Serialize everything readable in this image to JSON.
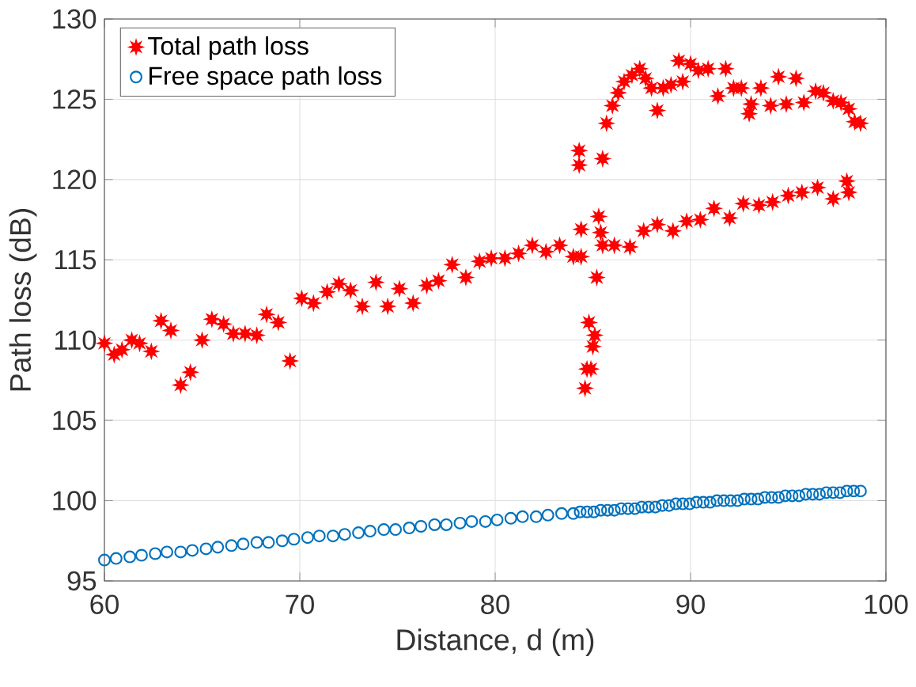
{
  "chart_data": {
    "type": "scatter",
    "xlabel": "Distance, d (m)",
    "ylabel": "Path loss (dB)",
    "xlim": [
      60,
      100
    ],
    "ylim": [
      95,
      130
    ],
    "xticks": [
      60,
      70,
      80,
      90,
      100
    ],
    "yticks": [
      95,
      100,
      105,
      110,
      115,
      120,
      125,
      130
    ],
    "grid": true,
    "legend": "top left",
    "series": [
      {
        "name": "Total path loss",
        "color": "#ff0000",
        "marker": "star",
        "x": [
          60.0,
          60.5,
          60.9,
          61.4,
          61.8,
          62.4,
          62.9,
          63.4,
          63.9,
          64.4,
          65.0,
          65.5,
          66.1,
          66.6,
          67.2,
          67.8,
          68.3,
          68.9,
          69.5,
          70.1,
          70.7,
          71.4,
          72.0,
          72.6,
          73.2,
          73.9,
          74.5,
          75.1,
          75.8,
          76.5,
          77.1,
          77.8,
          78.5,
          79.2,
          79.8,
          80.5,
          81.2,
          81.9,
          82.6,
          83.3,
          84.0,
          84.4,
          84.4,
          84.3,
          84.3,
          84.6,
          84.7,
          84.9,
          84.8,
          85.1,
          85.0,
          85.2,
          85.3,
          85.4,
          85.5,
          85.5,
          86.1,
          86.9,
          85.7,
          86.0,
          86.3,
          86.6,
          87.0,
          87.4,
          87.7,
          88.0,
          88.3,
          88.6,
          89.0,
          89.4,
          89.6,
          90.0,
          90.4,
          90.9,
          91.4,
          91.8,
          92.2,
          92.6,
          93.0,
          93.1,
          93.6,
          94.1,
          94.5,
          94.9,
          95.4,
          95.8,
          96.4,
          96.8,
          97.3,
          97.7,
          98.1,
          98.4,
          98.7,
          87.6,
          88.3,
          89.1,
          89.8,
          90.5,
          91.2,
          92.0,
          92.7,
          93.5,
          94.2,
          95.0,
          95.7,
          96.5,
          97.3,
          98.0,
          98.1
        ],
        "values": [
          109.8,
          109.1,
          109.4,
          110.0,
          109.8,
          109.3,
          111.2,
          110.6,
          107.2,
          108.0,
          110.0,
          111.3,
          111.0,
          110.4,
          110.4,
          110.3,
          111.6,
          111.1,
          108.7,
          112.6,
          112.3,
          113.0,
          113.5,
          113.1,
          112.1,
          113.6,
          112.1,
          113.2,
          112.3,
          113.4,
          113.7,
          114.7,
          113.9,
          114.9,
          115.1,
          115.1,
          115.4,
          115.9,
          115.5,
          115.9,
          115.2,
          115.2,
          116.9,
          121.8,
          120.9,
          107.0,
          108.2,
          108.2,
          111.1,
          110.3,
          109.6,
          113.9,
          117.7,
          116.7,
          115.9,
          121.3,
          115.9,
          115.8,
          123.5,
          124.6,
          125.4,
          126.1,
          126.5,
          126.9,
          126.3,
          125.7,
          124.3,
          125.7,
          125.9,
          127.4,
          126.1,
          127.2,
          126.8,
          126.9,
          125.2,
          126.9,
          125.7,
          125.7,
          124.1,
          124.7,
          125.7,
          124.6,
          126.4,
          124.7,
          126.3,
          124.8,
          125.5,
          125.4,
          124.9,
          124.8,
          124.4,
          123.6,
          123.5,
          116.8,
          117.2,
          116.8,
          117.4,
          117.5,
          118.2,
          117.6,
          118.5,
          118.4,
          118.6,
          119.0,
          119.2,
          119.5,
          118.8,
          119.9,
          119.2
        ]
      },
      {
        "name": "Free space path loss",
        "color": "#0072bd",
        "marker": "circle",
        "x": [
          60.0,
          60.6,
          61.3,
          61.9,
          62.6,
          63.2,
          63.9,
          64.5,
          65.2,
          65.8,
          66.5,
          67.1,
          67.8,
          68.4,
          69.1,
          69.7,
          70.4,
          71.0,
          71.7,
          72.3,
          73.0,
          73.6,
          74.3,
          74.9,
          75.6,
          76.2,
          76.9,
          77.5,
          78.2,
          78.8,
          79.5,
          80.1,
          80.8,
          81.4,
          82.1,
          82.7,
          83.4,
          84.0,
          84.35,
          84.7,
          85.05,
          85.4,
          85.75,
          86.1,
          86.45,
          86.8,
          87.15,
          87.5,
          87.85,
          88.2,
          88.55,
          88.9,
          89.25,
          89.6,
          89.95,
          90.3,
          90.65,
          91.0,
          91.35,
          91.7,
          92.05,
          92.4,
          92.75,
          93.1,
          93.45,
          93.8,
          94.15,
          94.5,
          94.85,
          95.2,
          95.55,
          95.9,
          96.25,
          96.6,
          96.95,
          97.3,
          97.65,
          98.0,
          98.35,
          98.7
        ],
        "values": [
          96.3,
          96.4,
          96.5,
          96.6,
          96.7,
          96.8,
          96.8,
          96.9,
          97.0,
          97.1,
          97.2,
          97.3,
          97.4,
          97.4,
          97.5,
          97.6,
          97.7,
          97.8,
          97.8,
          97.9,
          98.0,
          98.1,
          98.2,
          98.2,
          98.3,
          98.4,
          98.5,
          98.5,
          98.6,
          98.7,
          98.7,
          98.8,
          98.9,
          99.0,
          99.0,
          99.1,
          99.2,
          99.2,
          99.3,
          99.3,
          99.3,
          99.4,
          99.4,
          99.4,
          99.5,
          99.5,
          99.5,
          99.6,
          99.6,
          99.6,
          99.7,
          99.7,
          99.8,
          99.8,
          99.8,
          99.9,
          99.9,
          99.9,
          100.0,
          100.0,
          100.0,
          100.0,
          100.1,
          100.1,
          100.1,
          100.2,
          100.2,
          100.2,
          100.3,
          100.3,
          100.3,
          100.4,
          100.4,
          100.4,
          100.5,
          100.5,
          100.5,
          100.6,
          100.6,
          100.6
        ]
      }
    ]
  }
}
